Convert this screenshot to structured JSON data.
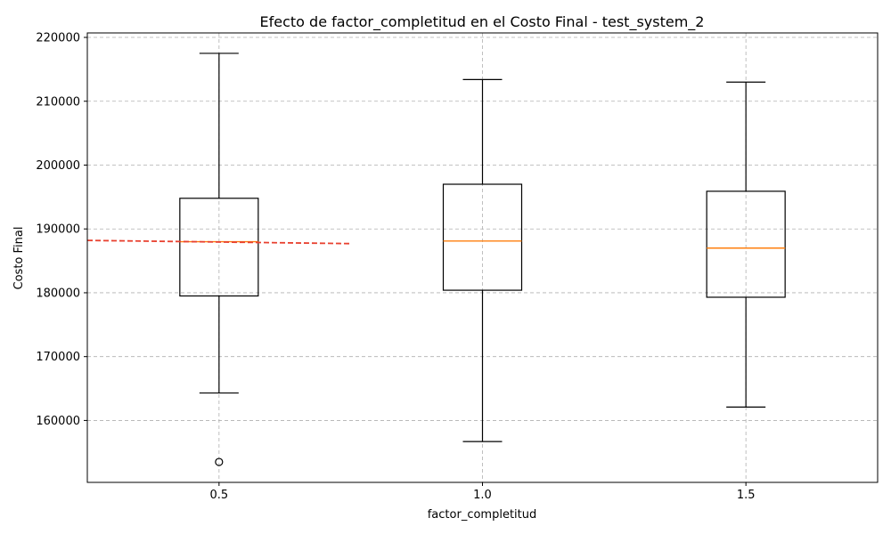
{
  "chart_data": {
    "type": "box",
    "title": "Efecto de factor_completitud en el Costo Final - test_system_2",
    "xlabel": "factor_completitud",
    "ylabel": "Costo Final",
    "categories": [
      "0.5",
      "1.0",
      "1.5"
    ],
    "ylim": [
      150300,
      220700
    ],
    "yticks": [
      160000,
      170000,
      180000,
      190000,
      200000,
      210000,
      220000
    ],
    "grid": true,
    "boxes": [
      {
        "category": "0.5",
        "whisker_low": 164300,
        "q1": 179500,
        "median": 188000,
        "q3": 194800,
        "whisker_high": 217500,
        "outliers": [
          153500
        ]
      },
      {
        "category": "1.0",
        "whisker_low": 156700,
        "q1": 180400,
        "median": 188100,
        "q3": 197000,
        "whisker_high": 213400,
        "outliers": []
      },
      {
        "category": "1.5",
        "whisker_low": 162100,
        "q1": 179300,
        "median": 187000,
        "q3": 195900,
        "whisker_high": 213000,
        "outliers": []
      }
    ],
    "trend_line": {
      "x": [
        0.25,
        0.75
      ],
      "y": [
        188200,
        187700
      ]
    },
    "colors": {
      "box": "#000000",
      "median": "#ff7f0e",
      "trend": "#e8402f",
      "grid": "#b0b0b0"
    }
  }
}
